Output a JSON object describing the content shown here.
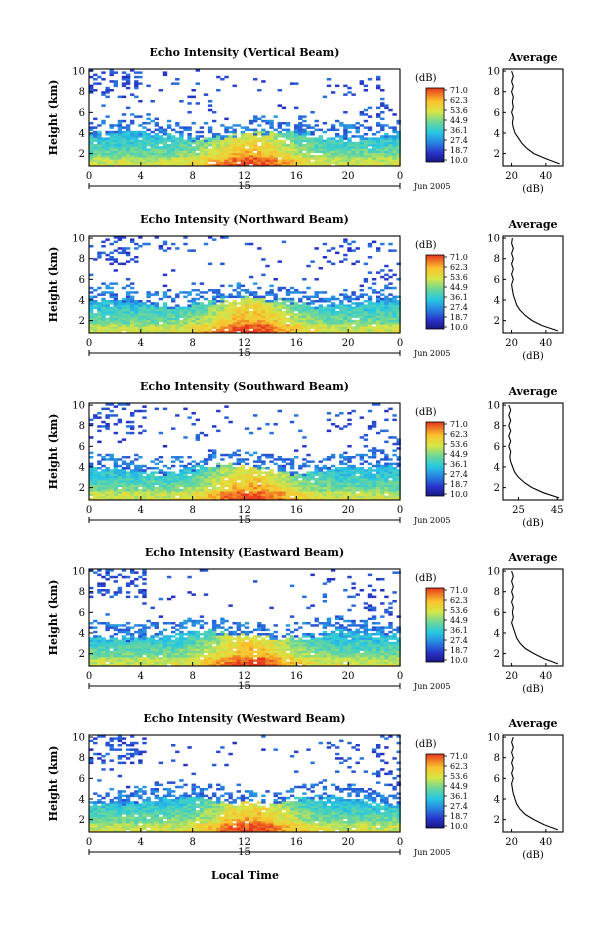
{
  "figure": {
    "xlabel_bottom": "Local Time",
    "date_label": "Jun 2005",
    "day_label": "15",
    "colorbar": {
      "unit": "(dB)",
      "ticks": [
        "71.0",
        "62.3",
        "53.6",
        "44.9",
        "36.1",
        "27.4",
        "18.7",
        "10.0"
      ],
      "colors": [
        "#ff0000",
        "#ffa500",
        "#ffff00",
        "#80ff80",
        "#00ffff",
        "#0080ff",
        "#0000ff",
        "#00008b"
      ]
    },
    "main_ylabel": "Height (km)",
    "side_title": "Average",
    "side_xlabel": "(dB)"
  },
  "chart_data": [
    {
      "type": "heatmap",
      "title": "Echo Intensity (Vertical Beam)",
      "ylabel": "Height (km)",
      "x_ticks": [
        "0",
        "4",
        "8",
        "12",
        "16",
        "20",
        "0"
      ],
      "y_ticks": [
        "2",
        "4",
        "6",
        "8",
        "10"
      ],
      "xlim_hours": [
        0,
        24
      ],
      "ylim_km": [
        0.8,
        10.2
      ],
      "side_profile": {
        "title": "Average",
        "xlabel": "(dB)",
        "x_ticks": [
          "20",
          "40"
        ],
        "xlim": [
          15,
          50
        ],
        "heights_km": [
          1.0,
          1.5,
          2.0,
          2.5,
          3.0,
          3.5,
          4.0,
          4.5,
          5.0,
          5.5,
          6.0,
          6.5,
          7.0,
          7.5,
          8.0,
          8.5,
          9.0,
          9.5,
          10.0
        ],
        "values_db": [
          48,
          40,
          33,
          29,
          26,
          24,
          22,
          21,
          20.5,
          21,
          20,
          21,
          20.5,
          21,
          20,
          21,
          20,
          21,
          20
        ]
      }
    },
    {
      "type": "heatmap",
      "title": "Echo Intensity (Northward Beam)",
      "ylabel": "Height (km)",
      "x_ticks": [
        "0",
        "4",
        "8",
        "12",
        "16",
        "20",
        "0"
      ],
      "y_ticks": [
        "2",
        "4",
        "6",
        "8",
        "10"
      ],
      "xlim_hours": [
        0,
        24
      ],
      "ylim_km": [
        0.8,
        10.2
      ],
      "side_profile": {
        "title": "Average",
        "xlabel": "(dB)",
        "x_ticks": [
          "20",
          "40"
        ],
        "xlim": [
          15,
          50
        ],
        "heights_km": [
          1.0,
          1.5,
          2.0,
          2.5,
          3.0,
          3.5,
          4.0,
          4.5,
          5.0,
          5.5,
          6.0,
          6.5,
          7.0,
          7.5,
          8.0,
          8.5,
          9.0,
          9.5,
          10.0
        ],
        "values_db": [
          47,
          38,
          32,
          28,
          25,
          23,
          22,
          21,
          20.5,
          20,
          21,
          20,
          21,
          20,
          21,
          20,
          21,
          20,
          20.5
        ]
      }
    },
    {
      "type": "heatmap",
      "title": "Echo Intensity (Southward Beam)",
      "ylabel": "Height (km)",
      "x_ticks": [
        "0",
        "4",
        "8",
        "12",
        "16",
        "20",
        "0"
      ],
      "y_ticks": [
        "2",
        "4",
        "6",
        "8",
        "10"
      ],
      "xlim_hours": [
        0,
        24
      ],
      "ylim_km": [
        0.8,
        10.2
      ],
      "side_profile": {
        "title": "Average",
        "xlabel": "(dB)",
        "x_ticks": [
          "25",
          "45"
        ],
        "xlim": [
          17,
          48
        ],
        "heights_km": [
          1.0,
          1.5,
          2.0,
          2.5,
          3.0,
          3.5,
          4.0,
          4.5,
          5.0,
          5.5,
          6.0,
          6.5,
          7.0,
          7.5,
          8.0,
          8.5,
          9.0,
          9.5,
          10.0
        ],
        "values_db": [
          46,
          38,
          32,
          28,
          25,
          23,
          22,
          21,
          20.5,
          21,
          20,
          21,
          20,
          21,
          20,
          21,
          20,
          21,
          20
        ]
      }
    },
    {
      "type": "heatmap",
      "title": "Echo Intensity (Eastward Beam)",
      "ylabel": "Height (km)",
      "x_ticks": [
        "0",
        "4",
        "8",
        "12",
        "16",
        "20",
        "0"
      ],
      "y_ticks": [
        "2",
        "4",
        "6",
        "8",
        "10"
      ],
      "xlim_hours": [
        0,
        24
      ],
      "ylim_km": [
        0.8,
        10.2
      ],
      "side_profile": {
        "title": "Average",
        "xlabel": "(dB)",
        "x_ticks": [
          "20",
          "40"
        ],
        "xlim": [
          15,
          50
        ],
        "heights_km": [
          1.0,
          1.5,
          2.0,
          2.5,
          3.0,
          3.5,
          4.0,
          4.5,
          5.0,
          5.5,
          6.0,
          6.5,
          7.0,
          7.5,
          8.0,
          8.5,
          9.0,
          9.5,
          10.0
        ],
        "values_db": [
          47,
          39,
          33,
          28,
          25,
          23,
          22,
          21,
          20,
          21,
          20.5,
          21,
          20,
          21,
          20,
          21,
          20,
          21,
          20
        ]
      }
    },
    {
      "type": "heatmap",
      "title": "Echo Intensity (Westward Beam)",
      "ylabel": "Height (km)",
      "x_ticks": [
        "0",
        "4",
        "8",
        "12",
        "16",
        "20",
        "0"
      ],
      "y_ticks": [
        "2",
        "4",
        "6",
        "8",
        "10"
      ],
      "xlim_hours": [
        0,
        24
      ],
      "ylim_km": [
        0.8,
        10.2
      ],
      "side_profile": {
        "title": "Average",
        "xlabel": "(dB)",
        "x_ticks": [
          "20",
          "40"
        ],
        "xlim": [
          15,
          50
        ],
        "heights_km": [
          1.0,
          1.5,
          2.0,
          2.5,
          3.0,
          3.5,
          4.0,
          4.5,
          5.0,
          5.5,
          6.0,
          6.5,
          7.0,
          7.5,
          8.0,
          8.5,
          9.0,
          9.5,
          10.0
        ],
        "values_db": [
          47,
          39,
          33,
          28,
          25,
          23,
          22,
          21,
          20.5,
          20,
          21,
          20,
          21,
          20,
          21,
          20,
          21,
          20,
          21
        ]
      }
    }
  ]
}
